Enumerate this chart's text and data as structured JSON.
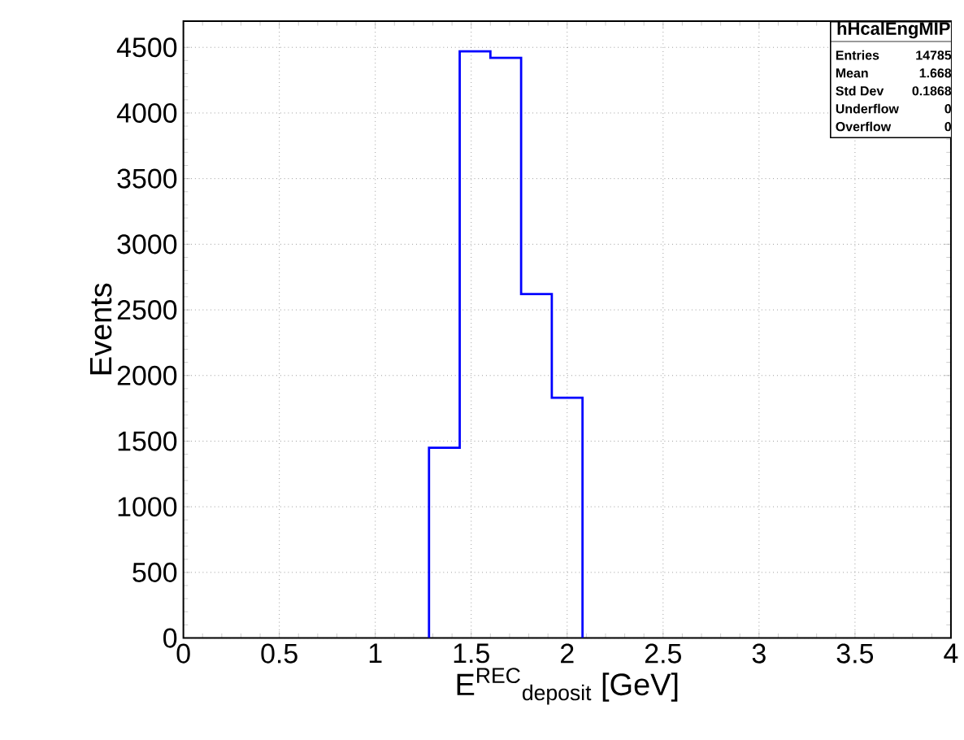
{
  "chart_data": {
    "type": "histogram",
    "bins": [
      1.28,
      1.44,
      1.6,
      1.76,
      1.92,
      2.08
    ],
    "values": [
      1450,
      4470,
      4420,
      2620,
      1830
    ],
    "color": "#0000ff",
    "xlabel": "E$^{REC}$$_{deposit}$ [GeV]",
    "ylabel": "Events",
    "xlim": [
      0,
      4
    ],
    "ylim": [
      0,
      4700
    ],
    "xticks": [
      0,
      0.5,
      1,
      1.5,
      2,
      2.5,
      3,
      3.5,
      4
    ],
    "yticks": [
      0,
      500,
      1000,
      1500,
      2000,
      2500,
      3000,
      3500,
      4000,
      4500
    ],
    "grid": true,
    "annotations": [
      "hHcalEngMIP",
      "Entries",
      "14785",
      "Mean",
      "1.668",
      "Std Dev",
      "0.1868",
      "Underflow",
      "0",
      "Overflow",
      "0"
    ]
  }
}
